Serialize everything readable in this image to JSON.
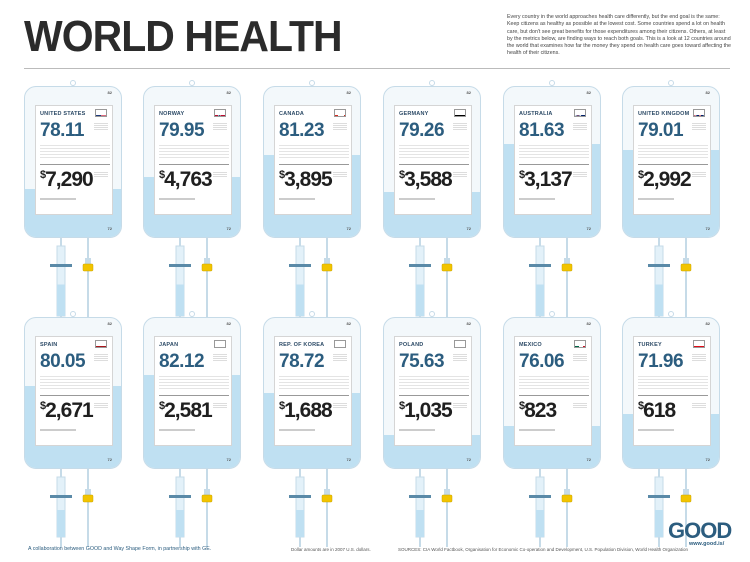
{
  "header": {
    "title": "WORLD HEALTH",
    "intro": "Every country in the world approaches health care differently, but the end goal is the same: Keep citizens as healthy as possible at the lowest cost. Some countries spend a lot on health care, but don't see great benefits for those expenditures among their citizens. Others, at least by the metrics below, are finding ways to reach both goals. This is a look at 12 countries around the world that examines how far the money they spend on health care goes toward affecting the health of their citizens."
  },
  "bag_scale": {
    "top": "82",
    "bottom": "72"
  },
  "countries": [
    {
      "name": "UNITED STATES",
      "life_expectancy": "78.11",
      "currency": "$",
      "spending": "7,290",
      "flag": "us-flag"
    },
    {
      "name": "NORWAY",
      "life_expectancy": "79.95",
      "currency": "$",
      "spending": "4,763",
      "flag": "norway-flag"
    },
    {
      "name": "CANADA",
      "life_expectancy": "81.23",
      "currency": "$",
      "spending": "3,895",
      "flag": "canada-flag"
    },
    {
      "name": "GERMANY",
      "life_expectancy": "79.26",
      "currency": "$",
      "spending": "3,588",
      "flag": "germany-flag"
    },
    {
      "name": "AUSTRALIA",
      "life_expectancy": "81.63",
      "currency": "$",
      "spending": "3,137",
      "flag": "australia-flag"
    },
    {
      "name": "UNITED KINGDOM",
      "life_expectancy": "79.01",
      "currency": "$",
      "spending": "2,992",
      "flag": "uk-flag"
    },
    {
      "name": "SPAIN",
      "life_expectancy": "80.05",
      "currency": "$",
      "spending": "2,671",
      "flag": "spain-flag"
    },
    {
      "name": "JAPAN",
      "life_expectancy": "82.12",
      "currency": "$",
      "spending": "2,581",
      "flag": "japan-flag"
    },
    {
      "name": "REP. OF KOREA",
      "life_expectancy": "78.72",
      "currency": "$",
      "spending": "1,688",
      "flag": "korea-flag"
    },
    {
      "name": "POLAND",
      "life_expectancy": "75.63",
      "currency": "$",
      "spending": "1,035",
      "flag": "poland-flag"
    },
    {
      "name": "MEXICO",
      "life_expectancy": "76.06",
      "currency": "$",
      "spending": "823",
      "flag": "mexico-flag"
    },
    {
      "name": "TURKEY",
      "life_expectancy": "71.96",
      "currency": "$",
      "spending": "618",
      "flag": "turkey-flag"
    }
  ],
  "footer": {
    "collab": "A collaboration between GOOD and Way Shape Form, in partnership with GE.",
    "dollars_note": "Dollar amounts are in 2007 U.S. dollars.",
    "sources": "SOURCES: CIA World Factbook, Organisation for Economic Co-operation and Development, U.S. Population Division, World Health Organization",
    "logo": "GOOD",
    "url": "www.good.is/"
  },
  "colors": {
    "accent": "#2c5d7f",
    "fluid": "#bfe0f2",
    "clamp": "#f2c400"
  }
}
